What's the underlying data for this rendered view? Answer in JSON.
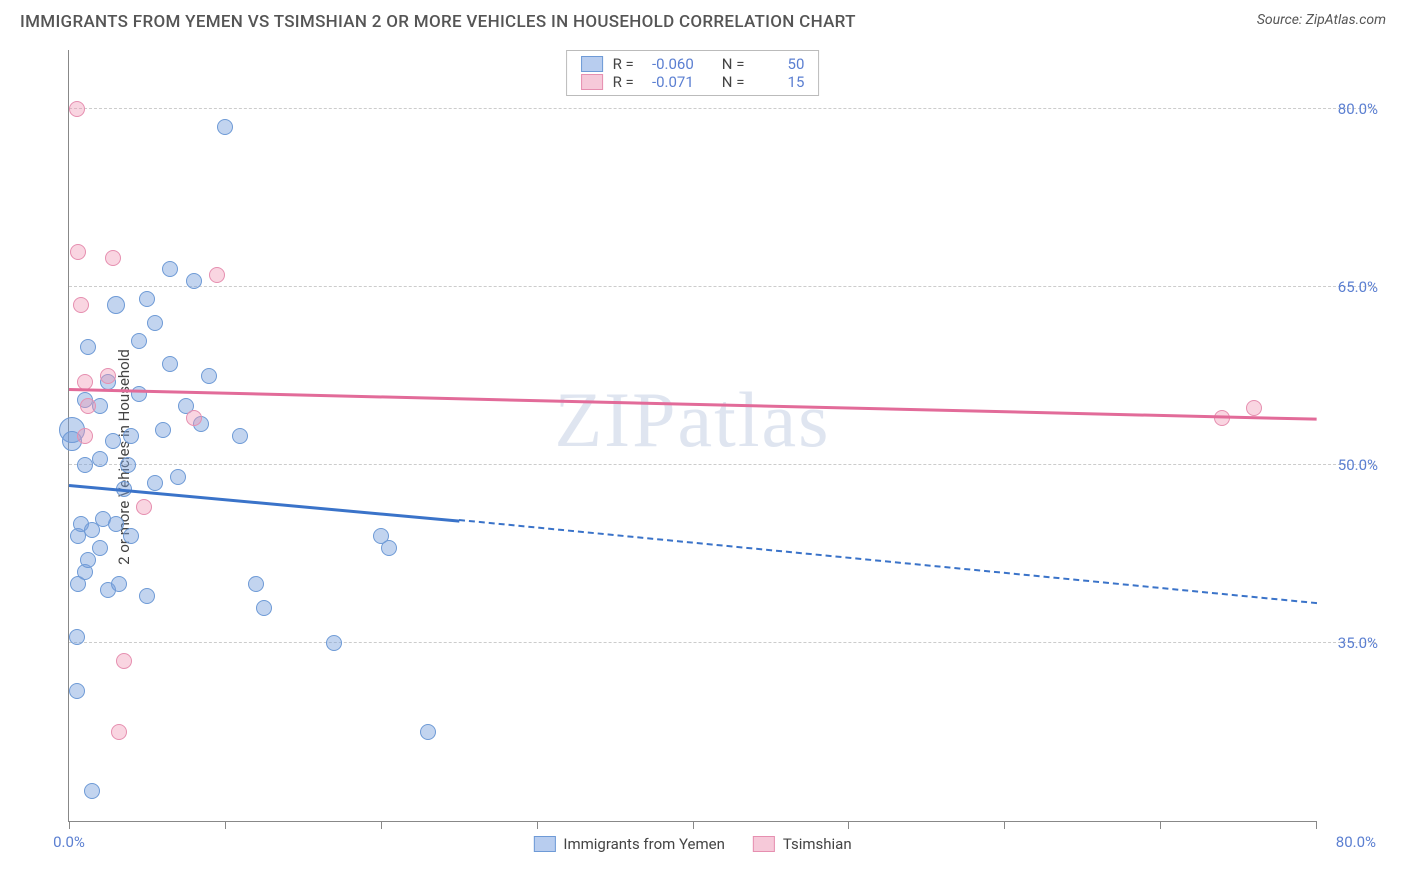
{
  "header": {
    "title": "IMMIGRANTS FROM YEMEN VS TSIMSHIAN 2 OR MORE VEHICLES IN HOUSEHOLD CORRELATION CHART",
    "source_prefix": "Source: ",
    "source": "ZipAtlas.com"
  },
  "chart": {
    "type": "scatter",
    "y_axis_label": "2 or more Vehicles in Household",
    "xlim": [
      0,
      80
    ],
    "ylim": [
      20,
      85
    ],
    "yticks": [
      35.0,
      50.0,
      65.0,
      80.0
    ],
    "ytick_labels": [
      "35.0%",
      "50.0%",
      "65.0%",
      "80.0%"
    ],
    "xticks": [
      0,
      10,
      20,
      30,
      40,
      50,
      60,
      70,
      80
    ],
    "xtick_labels_shown": {
      "0": "0.0%",
      "80": "80.0%"
    },
    "grid_color": "#cccccc",
    "axis_color": "#888888",
    "tick_label_color": "#5b7fd1",
    "background_color": "#ffffff",
    "watermark": "ZIPatlas",
    "series": [
      {
        "name": "Immigrants from Yemen",
        "fill_color": "rgba(120,160,220,0.45)",
        "stroke_color": "#6e9ad6",
        "line_color": "#3a73c9",
        "swatch_fill": "#b8cdef",
        "swatch_border": "#6e9ad6",
        "R": "-0.060",
        "N": "50",
        "trend": {
          "x1": 0,
          "y1": 48.5,
          "x2_solid": 25,
          "y2_solid": 45.5,
          "x2": 80,
          "y2": 38.5
        },
        "points": [
          {
            "x": 0.2,
            "y": 53.0,
            "r": 13
          },
          {
            "x": 0.2,
            "y": 52.0,
            "r": 10
          },
          {
            "x": 0.5,
            "y": 31.0,
            "r": 8
          },
          {
            "x": 0.5,
            "y": 35.5,
            "r": 8
          },
          {
            "x": 0.6,
            "y": 40.0,
            "r": 8
          },
          {
            "x": 0.6,
            "y": 44.0,
            "r": 8
          },
          {
            "x": 0.8,
            "y": 45.0,
            "r": 8
          },
          {
            "x": 1.0,
            "y": 41.0,
            "r": 8
          },
          {
            "x": 1.0,
            "y": 50.0,
            "r": 8
          },
          {
            "x": 1.0,
            "y": 55.5,
            "r": 8
          },
          {
            "x": 1.2,
            "y": 60.0,
            "r": 8
          },
          {
            "x": 1.2,
            "y": 42.0,
            "r": 8
          },
          {
            "x": 1.5,
            "y": 44.5,
            "r": 8
          },
          {
            "x": 1.5,
            "y": 22.5,
            "r": 8
          },
          {
            "x": 2.0,
            "y": 43.0,
            "r": 8
          },
          {
            "x": 2.0,
            "y": 55.0,
            "r": 8
          },
          {
            "x": 2.0,
            "y": 50.5,
            "r": 8
          },
          {
            "x": 2.2,
            "y": 45.5,
            "r": 8
          },
          {
            "x": 2.5,
            "y": 39.5,
            "r": 8
          },
          {
            "x": 2.5,
            "y": 57.0,
            "r": 8
          },
          {
            "x": 2.8,
            "y": 52.0,
            "r": 8
          },
          {
            "x": 3.0,
            "y": 45.0,
            "r": 8
          },
          {
            "x": 3.0,
            "y": 63.5,
            "r": 9
          },
          {
            "x": 3.2,
            "y": 40.0,
            "r": 8
          },
          {
            "x": 3.5,
            "y": 48.0,
            "r": 8
          },
          {
            "x": 3.8,
            "y": 50.0,
            "r": 8
          },
          {
            "x": 4.0,
            "y": 44.0,
            "r": 8
          },
          {
            "x": 4.0,
            "y": 52.5,
            "r": 8
          },
          {
            "x": 4.5,
            "y": 56.0,
            "r": 8
          },
          {
            "x": 4.5,
            "y": 60.5,
            "r": 8
          },
          {
            "x": 5.0,
            "y": 39.0,
            "r": 8
          },
          {
            "x": 5.0,
            "y": 64.0,
            "r": 8
          },
          {
            "x": 5.5,
            "y": 48.5,
            "r": 8
          },
          {
            "x": 5.5,
            "y": 62.0,
            "r": 8
          },
          {
            "x": 6.0,
            "y": 53.0,
            "r": 8
          },
          {
            "x": 6.5,
            "y": 58.5,
            "r": 8
          },
          {
            "x": 6.5,
            "y": 66.5,
            "r": 8
          },
          {
            "x": 7.0,
            "y": 49.0,
            "r": 8
          },
          {
            "x": 7.5,
            "y": 55.0,
            "r": 8
          },
          {
            "x": 8.0,
            "y": 65.5,
            "r": 8
          },
          {
            "x": 8.5,
            "y": 53.5,
            "r": 8
          },
          {
            "x": 9.0,
            "y": 57.5,
            "r": 8
          },
          {
            "x": 10.0,
            "y": 78.5,
            "r": 8
          },
          {
            "x": 11.0,
            "y": 52.5,
            "r": 8
          },
          {
            "x": 12.0,
            "y": 40.0,
            "r": 8
          },
          {
            "x": 12.5,
            "y": 38.0,
            "r": 8
          },
          {
            "x": 17.0,
            "y": 35.0,
            "r": 8
          },
          {
            "x": 20.0,
            "y": 44.0,
            "r": 8
          },
          {
            "x": 20.5,
            "y": 43.0,
            "r": 8
          },
          {
            "x": 23.0,
            "y": 27.5,
            "r": 8
          }
        ]
      },
      {
        "name": "Tsimshian",
        "fill_color": "rgba(240,150,180,0.40)",
        "stroke_color": "#e68fb0",
        "line_color": "#e26b99",
        "swatch_fill": "#f6c9d9",
        "swatch_border": "#e68fb0",
        "R": "-0.071",
        "N": "15",
        "trend": {
          "x1": 0,
          "y1": 56.5,
          "x2_solid": 80,
          "y2_solid": 54.0,
          "x2": 80,
          "y2": 54.0
        },
        "points": [
          {
            "x": 0.5,
            "y": 80.0,
            "r": 8
          },
          {
            "x": 0.6,
            "y": 68.0,
            "r": 8
          },
          {
            "x": 0.8,
            "y": 63.5,
            "r": 8
          },
          {
            "x": 1.0,
            "y": 57.0,
            "r": 8
          },
          {
            "x": 1.0,
            "y": 52.5,
            "r": 8
          },
          {
            "x": 1.2,
            "y": 55.0,
            "r": 8
          },
          {
            "x": 2.5,
            "y": 57.5,
            "r": 8
          },
          {
            "x": 2.8,
            "y": 67.5,
            "r": 8
          },
          {
            "x": 3.5,
            "y": 33.5,
            "r": 8
          },
          {
            "x": 3.2,
            "y": 27.5,
            "r": 8
          },
          {
            "x": 4.8,
            "y": 46.5,
            "r": 8
          },
          {
            "x": 8.0,
            "y": 54.0,
            "r": 8
          },
          {
            "x": 9.5,
            "y": 66.0,
            "r": 8
          },
          {
            "x": 74.0,
            "y": 54.0,
            "r": 8
          },
          {
            "x": 76.0,
            "y": 54.8,
            "r": 8
          }
        ]
      }
    ],
    "legend_top": {
      "r_label": "R =",
      "n_label": "N ="
    }
  }
}
